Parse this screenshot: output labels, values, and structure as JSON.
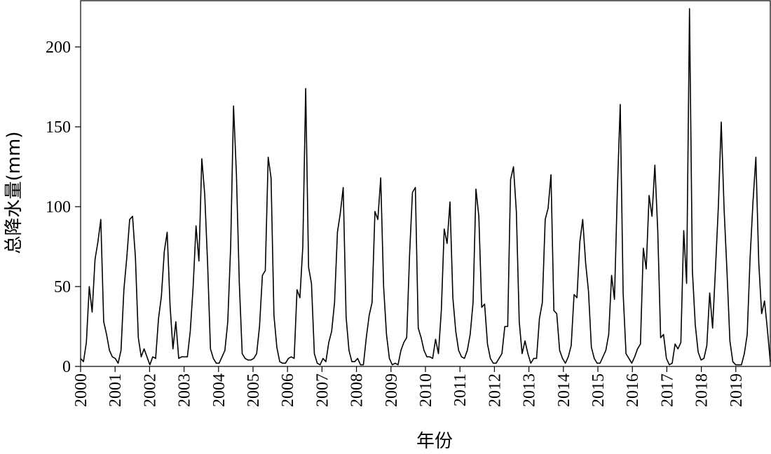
{
  "chart_data": {
    "type": "line",
    "xlabel": "年份",
    "ylabel": "总降水量(mm)",
    "ylim": [
      0,
      225
    ],
    "yticks": [
      0,
      50,
      100,
      150,
      200
    ],
    "xlim": [
      2000,
      2020
    ],
    "xticks": [
      "2000",
      "2001",
      "2002",
      "2003",
      "2004",
      "2005",
      "2006",
      "2007",
      "2008",
      "2009",
      "2010",
      "2011",
      "2012",
      "2013",
      "2014",
      "2015",
      "2016",
      "2017",
      "2018",
      "2019"
    ],
    "grid": false,
    "legend": "none",
    "line_color": "#000000",
    "series": [
      {
        "x_start": "2000-01",
        "x_step": "month",
        "values": [
          5,
          3,
          15,
          50,
          34,
          67,
          78,
          92,
          28,
          20,
          10,
          6,
          5,
          2,
          10,
          48,
          68,
          92,
          94,
          68,
          18,
          6,
          11,
          6,
          1,
          6,
          5,
          30,
          44,
          72,
          84,
          38,
          11,
          28,
          5,
          6,
          6,
          6,
          22,
          50,
          88,
          66,
          130,
          108,
          65,
          11,
          5,
          2,
          2,
          6,
          10,
          28,
          75,
          163,
          120,
          52,
          8,
          5,
          4,
          4,
          5,
          8,
          25,
          57,
          60,
          131,
          118,
          32,
          12,
          3,
          2,
          2,
          5,
          6,
          5,
          48,
          43,
          75,
          174,
          62,
          52,
          8,
          2,
          1,
          5,
          3,
          15,
          22,
          40,
          84,
          96,
          112,
          31,
          10,
          3,
          3,
          5,
          1,
          1,
          18,
          32,
          40,
          97,
          92,
          118,
          50,
          20,
          5,
          1,
          2,
          1,
          10,
          15,
          18,
          70,
          109,
          112,
          24,
          18,
          10,
          6,
          6,
          5,
          17,
          8,
          35,
          86,
          77,
          103,
          43,
          22,
          10,
          6,
          5,
          10,
          20,
          40,
          111,
          94,
          37,
          39,
          14,
          5,
          2,
          2,
          5,
          8,
          25,
          25,
          117,
          125,
          97,
          28,
          8,
          16,
          8,
          2,
          5,
          5,
          30,
          40,
          92,
          99,
          120,
          35,
          33,
          10,
          5,
          2,
          6,
          13,
          45,
          43,
          78,
          92,
          65,
          47,
          12,
          5,
          2,
          2,
          6,
          10,
          20,
          57,
          42,
          110,
          164,
          46,
          8,
          5,
          2,
          6,
          11,
          14,
          74,
          61,
          107,
          94,
          126,
          85,
          18,
          20,
          5,
          1,
          2,
          14,
          11,
          15,
          85,
          52,
          224,
          60,
          26,
          9,
          4,
          5,
          13,
          46,
          24,
          61,
          100,
          153,
          98,
          59,
          16,
          3,
          1,
          1,
          1,
          8,
          20,
          68,
          103,
          131,
          65,
          33,
          41,
          23,
          3
        ]
      }
    ]
  }
}
